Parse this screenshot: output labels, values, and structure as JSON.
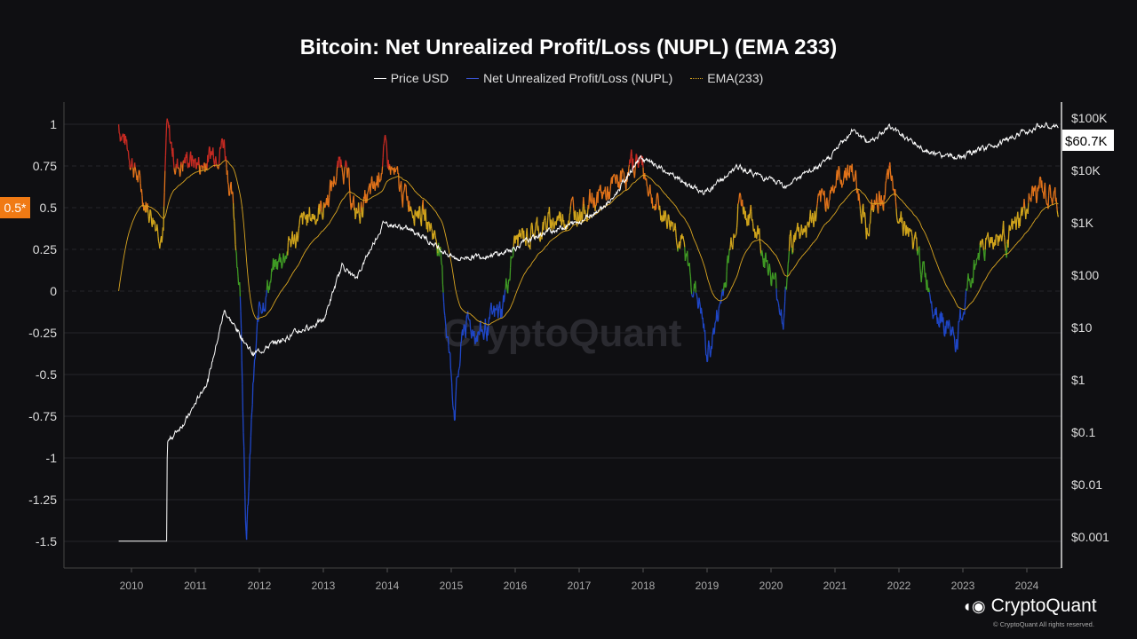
{
  "chart_data": {
    "type": "line",
    "title": "Bitcoin: Net Unrealized Profit/Loss (NUPL) (EMA 233)",
    "legend": [
      {
        "name": "Price USD",
        "color": "#ffffff"
      },
      {
        "name": "Net Unrealized Profit/Loss (NUPL)",
        "color": "#3b55d9"
      },
      {
        "name": "EMA(233)",
        "color": "#d9a521"
      }
    ],
    "legend_position": "top",
    "x_ticks": [
      "2010",
      "2011",
      "2012",
      "2013",
      "2014",
      "2015",
      "2016",
      "2017",
      "2018",
      "2019",
      "2020",
      "2021",
      "2022",
      "2023",
      "2024"
    ],
    "y_left_ticks": [
      "1",
      "0.75",
      "0.5",
      "0.25",
      "0",
      "-0.25",
      "-0.5",
      "-0.75",
      "-1",
      "-1.25",
      "-1.5"
    ],
    "y_left_range": [
      -1.6,
      1.1
    ],
    "y_right_ticks": [
      "$100K",
      "$10K",
      "$1K",
      "$100",
      "$10",
      "$1",
      "$0.1",
      "$0.01",
      "$0.001"
    ],
    "y_right_scale": "log",
    "highlight_left_label": "0.5*",
    "current_price_label": "$60.7K",
    "grid": true,
    "nupl_colors": {
      "above_0.75": "#c62a22",
      "0.5_to_0.75": "#e2731a",
      "0.25_to_0.5": "#d1a51c",
      "0_to_0.25": "#3f9a24",
      "below_0": "#1f47c8"
    },
    "nupl": [
      [
        2009.8,
        1.0
      ],
      [
        2010.0,
        0.8
      ],
      [
        2010.2,
        0.55
      ],
      [
        2010.5,
        0.35
      ],
      [
        2010.55,
        0.97
      ],
      [
        2010.7,
        0.75
      ],
      [
        2010.9,
        0.8
      ],
      [
        2011.1,
        0.75
      ],
      [
        2011.3,
        0.85
      ],
      [
        2011.45,
        0.9
      ],
      [
        2011.6,
        0.45
      ],
      [
        2011.7,
        0.0
      ],
      [
        2011.8,
        -1.5
      ],
      [
        2011.9,
        -0.6
      ],
      [
        2012.0,
        -0.1
      ],
      [
        2012.2,
        0.1
      ],
      [
        2012.5,
        0.3
      ],
      [
        2012.8,
        0.45
      ],
      [
        2013.0,
        0.5
      ],
      [
        2013.3,
        0.8
      ],
      [
        2013.5,
        0.45
      ],
      [
        2013.8,
        0.6
      ],
      [
        2013.95,
        0.83
      ],
      [
        2014.2,
        0.6
      ],
      [
        2014.5,
        0.5
      ],
      [
        2014.8,
        0.3
      ],
      [
        2015.05,
        -0.7
      ],
      [
        2015.2,
        -0.2
      ],
      [
        2015.5,
        -0.25
      ],
      [
        2015.8,
        -0.1
      ],
      [
        2016.0,
        0.3
      ],
      [
        2016.5,
        0.4
      ],
      [
        2017.0,
        0.5
      ],
      [
        2017.5,
        0.6
      ],
      [
        2017.95,
        0.8
      ],
      [
        2018.2,
        0.5
      ],
      [
        2018.5,
        0.4
      ],
      [
        2018.9,
        -0.1
      ],
      [
        2019.0,
        -0.4
      ],
      [
        2019.2,
        -0.1
      ],
      [
        2019.5,
        0.55
      ],
      [
        2019.8,
        0.35
      ],
      [
        2020.2,
        -0.15
      ],
      [
        2020.3,
        0.3
      ],
      [
        2020.7,
        0.45
      ],
      [
        2021.0,
        0.65
      ],
      [
        2021.25,
        0.75
      ],
      [
        2021.5,
        0.4
      ],
      [
        2021.85,
        0.65
      ],
      [
        2022.0,
        0.5
      ],
      [
        2022.4,
        0.1
      ],
      [
        2022.6,
        -0.1
      ],
      [
        2022.9,
        -0.3
      ],
      [
        2023.1,
        0.05
      ],
      [
        2023.3,
        0.3
      ],
      [
        2023.8,
        0.35
      ],
      [
        2024.0,
        0.5
      ],
      [
        2024.2,
        0.62
      ],
      [
        2024.5,
        0.5
      ]
    ],
    "price": [
      [
        2009.8,
        0.0008
      ],
      [
        2010.0,
        0.0008
      ],
      [
        2010.55,
        0.0008
      ],
      [
        2010.56,
        0.06
      ],
      [
        2010.9,
        0.2
      ],
      [
        2011.2,
        1
      ],
      [
        2011.45,
        20
      ],
      [
        2011.9,
        3
      ],
      [
        2012.5,
        7
      ],
      [
        2013.0,
        13
      ],
      [
        2013.3,
        150
      ],
      [
        2013.5,
        80
      ],
      [
        2013.95,
        1000
      ],
      [
        2014.5,
        600
      ],
      [
        2015.05,
        200
      ],
      [
        2015.8,
        250
      ],
      [
        2016.5,
        650
      ],
      [
        2017.0,
        1000
      ],
      [
        2017.5,
        2500
      ],
      [
        2017.95,
        17000
      ],
      [
        2018.5,
        7000
      ],
      [
        2018.95,
        3500
      ],
      [
        2019.5,
        11000
      ],
      [
        2020.2,
        5000
      ],
      [
        2020.8,
        12000
      ],
      [
        2021.3,
        60000
      ],
      [
        2021.5,
        33000
      ],
      [
        2021.85,
        65000
      ],
      [
        2022.5,
        20000
      ],
      [
        2022.95,
        16500
      ],
      [
        2023.5,
        30000
      ],
      [
        2024.2,
        70000
      ],
      [
        2024.5,
        60700
      ]
    ]
  },
  "watermark": "CryptoQuant",
  "brand": {
    "name": "CryptoQuant",
    "copyright": "© CryptoQuant All rights reserved."
  }
}
